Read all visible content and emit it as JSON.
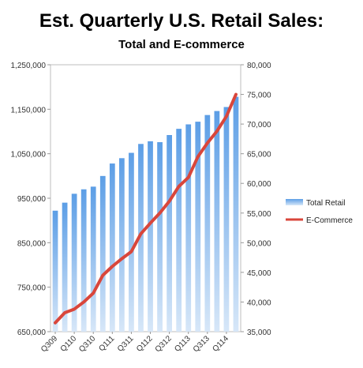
{
  "chart_data": {
    "type": "bar",
    "title": "Est. Quarterly U.S. Retail Sales:",
    "subtitle": "Total and E-commerce",
    "categories": [
      "Q309",
      "Q409",
      "Q110",
      "Q210",
      "Q310",
      "Q410",
      "Q111",
      "Q211",
      "Q311",
      "Q411",
      "Q112",
      "Q212",
      "Q312",
      "Q412",
      "Q113",
      "Q213",
      "Q313",
      "Q413",
      "Q114",
      "Q214"
    ],
    "x_tick_labels": [
      "Q309",
      "Q110",
      "Q310",
      "Q111",
      "Q311",
      "Q112",
      "Q312",
      "Q113",
      "Q313",
      "Q114"
    ],
    "series": [
      {
        "name": "Total Retail",
        "type": "bar",
        "axis": "left",
        "color": "#4a90d9",
        "values": [
          922000,
          940000,
          960000,
          970000,
          976000,
          1000000,
          1028000,
          1040000,
          1052000,
          1072000,
          1078000,
          1076000,
          1092000,
          1106000,
          1116000,
          1122000,
          1137000,
          1146000,
          1155000,
          1178000
        ]
      },
      {
        "name": "E-Commerce",
        "type": "line",
        "axis": "right",
        "color": "#d9463b",
        "values": [
          36500,
          38200,
          38800,
          40000,
          41500,
          44500,
          46000,
          47300,
          48500,
          51500,
          53300,
          55000,
          57000,
          59500,
          61000,
          64500,
          66800,
          68800,
          71300,
          75000
        ]
      }
    ],
    "y_left": {
      "min": 650000,
      "max": 1250000,
      "ticks": [
        "650,000",
        "750,000",
        "850,000",
        "950,000",
        "1,050,000",
        "1,150,000",
        "1,250,000"
      ]
    },
    "y_right": {
      "min": 35000,
      "max": 80000,
      "ticks": [
        "35,000",
        "40,000",
        "45,000",
        "50,000",
        "55,000",
        "60,000",
        "65,000",
        "70,000",
        "75,000",
        "80,000"
      ]
    },
    "legend_position": "right",
    "grid": false
  }
}
